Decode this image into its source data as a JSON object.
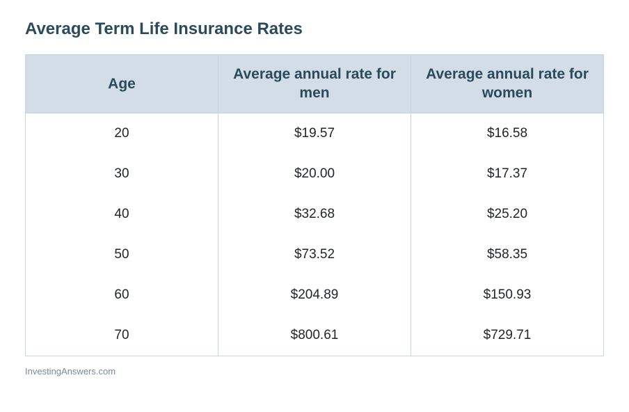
{
  "title": "Average Term Life Insurance Rates",
  "attribution": "InvestingAnswers.com",
  "table": {
    "columns": [
      "Age",
      "Average annual rate for men",
      "Average annual rate for women"
    ],
    "rows": [
      [
        "20",
        "$19.57",
        "$16.58"
      ],
      [
        "30",
        "$20.00",
        "$17.37"
      ],
      [
        "40",
        "$32.68",
        "$25.20"
      ],
      [
        "50",
        "$73.52",
        "$58.35"
      ],
      [
        "60",
        "$204.89",
        "$150.93"
      ],
      [
        "70",
        "$800.61",
        "$729.71"
      ]
    ],
    "header_bg": "#d2dde7",
    "header_text_color": "#2b4a5c",
    "border_color": "#c9d4de",
    "body_text_color": "#212529",
    "title_color": "#2b4a5c",
    "attribution_color": "#7a8a95",
    "column_widths": [
      "33.3%",
      "33.3%",
      "33.4%"
    ]
  }
}
